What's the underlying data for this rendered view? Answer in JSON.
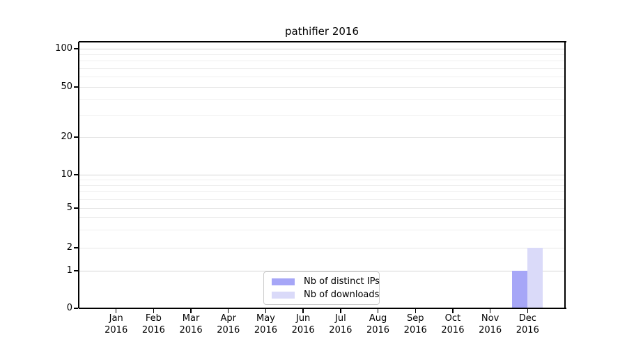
{
  "chart_data": {
    "type": "bar",
    "title": "pathifier 2016",
    "categories": [
      "Jan 2016",
      "Feb 2016",
      "Mar 2016",
      "Apr 2016",
      "May 2016",
      "Jun 2016",
      "Jul 2016",
      "Aug 2016",
      "Sep 2016",
      "Oct 2016",
      "Nov 2016",
      "Dec 2016"
    ],
    "series": [
      {
        "name": "Nb of distinct IPs",
        "color": "#a6a6f7",
        "values": [
          0,
          0,
          0,
          0,
          0,
          0,
          0,
          0,
          0,
          0,
          0,
          1
        ]
      },
      {
        "name": "Nb of downloads",
        "color": "#dadaf9",
        "values": [
          0,
          0,
          0,
          0,
          0,
          0,
          0,
          0,
          0,
          0,
          0,
          2
        ]
      }
    ],
    "xlabel": "",
    "ylabel": "",
    "yticks": [
      0,
      1,
      2,
      5,
      10,
      20,
      50,
      100
    ],
    "y_minor_ticks": [
      3,
      4,
      6,
      7,
      8,
      9,
      30,
      40,
      60,
      70,
      80,
      90
    ],
    "ylim": [
      0,
      110
    ],
    "yscale": "symlog",
    "grid": "horizontal major and minor",
    "legend_position": "inside bottom-center-left",
    "colors": {
      "axis": "#000000",
      "grid_major": "#d4d4d4",
      "grid_labeled": "#e6e6e6",
      "grid_minor": "#efefef",
      "background": "#ffffff",
      "legend_border": "#cccccc"
    }
  }
}
